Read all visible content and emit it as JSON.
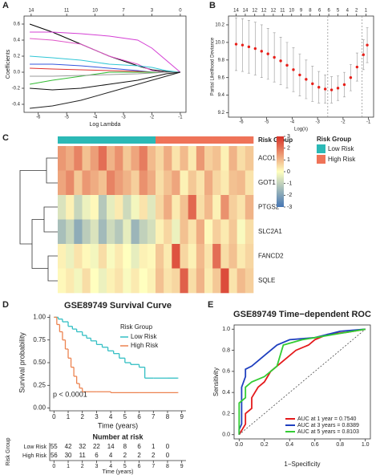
{
  "chart_data": [
    {
      "type": "lasso",
      "panel": "A",
      "xlabel": "Log Lambda",
      "ylabel": "Coefficients",
      "xlim": [
        -6.5,
        -0.8
      ],
      "xticks": [
        -6,
        -5,
        -4,
        -3,
        -2,
        -1
      ],
      "x2ticks": [
        {
          "value": -6.25,
          "label": "14"
        },
        {
          "value": -5,
          "label": "11"
        },
        {
          "value": -4,
          "label": "10"
        },
        {
          "value": -3,
          "label": "7"
        },
        {
          "value": -2,
          "label": "3"
        },
        {
          "value": -1,
          "label": "0"
        }
      ],
      "ylim": [
        -0.5,
        0.7
      ],
      "yticks": [
        -0.4,
        -0.2,
        {
          "value": 0,
          "label": "0.0"
        },
        0.2,
        0.4,
        0.6
      ],
      "x": [
        -6.3,
        -5.5,
        -4.5,
        -3.5,
        -2.5,
        -2,
        -1.5,
        -1
      ],
      "series": [
        {
          "color": "#000000",
          "values": [
            0.6,
            0.5,
            0.35,
            0.2,
            0.08,
            0.03,
            0.01,
            0
          ]
        },
        {
          "color": "#d43fd4",
          "values": [
            0.5,
            0.5,
            0.48,
            0.45,
            0.4,
            0.3,
            0.15,
            0
          ]
        },
        {
          "color": "#e055c8",
          "values": [
            0.42,
            0.4,
            0.35,
            0.2,
            0.1,
            0.02,
            0,
            0
          ]
        },
        {
          "color": "#2fc6d6",
          "values": [
            0.2,
            0.18,
            0.15,
            0.1,
            0.08,
            0.06,
            0.02,
            0
          ]
        },
        {
          "color": "#3355dd",
          "values": [
            0.1,
            0.1,
            0.08,
            0.05,
            0.02,
            0,
            0,
            0
          ]
        },
        {
          "color": "#e03030",
          "values": [
            0.05,
            0.04,
            0.03,
            0.02,
            0.01,
            0,
            0,
            0
          ]
        },
        {
          "color": "#33bb33",
          "values": [
            -0.15,
            -0.1,
            -0.05,
            0,
            0,
            0,
            0,
            0
          ]
        },
        {
          "color": "#999999",
          "values": [
            -0.05,
            -0.05,
            -0.04,
            -0.03,
            -0.02,
            -0.01,
            0,
            0
          ]
        },
        {
          "color": "#111111",
          "values": [
            -0.2,
            -0.22,
            -0.2,
            -0.15,
            -0.1,
            -0.06,
            -0.02,
            0
          ]
        },
        {
          "color": "#222222",
          "values": [
            -0.45,
            -0.42,
            -0.35,
            -0.25,
            -0.15,
            -0.1,
            -0.05,
            0
          ]
        }
      ]
    },
    {
      "type": "cv",
      "panel": "B",
      "xlabel": "Log(λ)",
      "ylabel": "Partial Likelihood Deviance",
      "xlim": [
        -6.5,
        -0.8
      ],
      "xticks": [
        -6,
        -5,
        -4,
        -3,
        -2,
        -1
      ],
      "x2ticks": [
        {
          "value": -6.2,
          "label": "14"
        },
        {
          "value": -5.84,
          "label": "14"
        },
        {
          "value": -5.47,
          "label": "12"
        },
        {
          "value": -5.11,
          "label": "12"
        },
        {
          "value": -4.74,
          "label": "12"
        },
        {
          "value": -4.38,
          "label": "11"
        },
        {
          "value": -4.02,
          "label": "10"
        },
        {
          "value": -3.65,
          "label": "9"
        },
        {
          "value": -3.29,
          "label": "8"
        },
        {
          "value": -2.92,
          "label": "6"
        },
        {
          "value": -2.56,
          "label": "6"
        },
        {
          "value": -2.2,
          "label": "5"
        },
        {
          "value": -1.83,
          "label": "4"
        },
        {
          "value": -1.47,
          "label": "2"
        },
        {
          "value": -1.1,
          "label": "1"
        }
      ],
      "ylim": [
        9.15,
        10.3
      ],
      "yticks": [
        9.2,
        9.4,
        9.6,
        9.8,
        {
          "value": 10,
          "label": "10.0"
        },
        10.2
      ],
      "color": "#e8201a",
      "vlines": [
        -2.6,
        -1.25
      ],
      "x": [
        -6.2,
        -5.95,
        -5.7,
        -5.45,
        -5.2,
        -4.95,
        -4.7,
        -4.45,
        -4.2,
        -3.95,
        -3.7,
        -3.45,
        -3.2,
        -2.95,
        -2.7,
        -2.45,
        -2.2,
        -1.95,
        -1.7,
        -1.45,
        -1.2,
        -1.05
      ],
      "values": [
        9.98,
        9.97,
        9.95,
        9.93,
        9.9,
        9.87,
        9.83,
        9.79,
        9.74,
        9.69,
        9.63,
        9.58,
        9.53,
        9.49,
        9.47,
        9.46,
        9.48,
        9.52,
        9.6,
        9.72,
        9.86,
        9.97
      ],
      "errors": [
        0.3,
        0.3,
        0.3,
        0.3,
        0.3,
        0.29,
        0.28,
        0.27,
        0.26,
        0.25,
        0.24,
        0.22,
        0.2,
        0.18,
        0.16,
        0.15,
        0.14,
        0.14,
        0.15,
        0.16,
        0.17,
        0.2
      ]
    },
    {
      "type": "heatmap",
      "panel": "C",
      "annotation_label": "Risk Group",
      "legend_title": "Risk Group",
      "groups": [
        {
          "name": "Low Risk",
          "color": "#2bb9b6"
        },
        {
          "name": "High Risk",
          "color": "#ef7358"
        }
      ],
      "column_groups": [
        0,
        0,
        0,
        0,
        0,
        0,
        0,
        0,
        0,
        0,
        0,
        0,
        1,
        1,
        1,
        1,
        1,
        1,
        1,
        1,
        1,
        1,
        1,
        1
      ],
      "zlim": [
        -3,
        3
      ],
      "colors": [
        "#4575b4",
        "#ffffbf",
        "#d73027"
      ],
      "colorbar_ticks": [
        3,
        2,
        1,
        0,
        -1,
        -2,
        -3
      ],
      "rows": [
        "ACO1",
        "GOT1",
        "PTGS2",
        "SLC2A1",
        "FANCD2",
        "SQLE"
      ],
      "values": [
        [
          1.5,
          1.2,
          1.8,
          0.9,
          1.4,
          2.1,
          1.1,
          1.6,
          0.8,
          1.3,
          1.9,
          1.0,
          0.6,
          1.2,
          0.4,
          1.0,
          0.3,
          1.5,
          0.7,
          0.9,
          0.2,
          1.1,
          0.5,
          0.8
        ],
        [
          1.3,
          1.7,
          0.8,
          1.5,
          1.2,
          0.9,
          1.8,
          1.4,
          1.1,
          0.7,
          1.6,
          1.2,
          0.5,
          0.9,
          1.3,
          0.2,
          0.8,
          0.4,
          1.2,
          0.6,
          0.3,
          0.9,
          1.0,
          0.4
        ],
        [
          -0.6,
          0.2,
          -0.9,
          -0.3,
          0.1,
          -1.2,
          -0.4,
          0.3,
          -0.8,
          -0.2,
          0.4,
          -0.5,
          0.6,
          1.2,
          0.3,
          0.9,
          2.2,
          0.5,
          1.0,
          0.2,
          1.6,
          0.7,
          0.4,
          1.1
        ],
        [
          -1.4,
          -0.9,
          -1.8,
          -1.1,
          -0.6,
          -1.5,
          -0.8,
          -1.2,
          -0.4,
          -1.6,
          -1.0,
          -0.7,
          0.2,
          0.6,
          -0.3,
          0.9,
          0.4,
          1.2,
          0.1,
          0.7,
          0.3,
          0.8,
          -0.1,
          0.5
        ],
        [
          0.2,
          -0.3,
          0.4,
          0.1,
          -0.2,
          0.5,
          -0.1,
          0.3,
          0.0,
          -0.4,
          0.2,
          0.1,
          0.8,
          0.3,
          2.5,
          0.6,
          0.2,
          1.0,
          0.4,
          2.1,
          0.5,
          0.9,
          0.3,
          0.6
        ],
        [
          0.1,
          0.3,
          -0.2,
          0.5,
          0.0,
          -0.3,
          0.2,
          0.4,
          -0.1,
          0.3,
          0.0,
          0.2,
          0.9,
          0.4,
          0.6,
          2.3,
          0.5,
          1.1,
          0.3,
          0.8,
          2.6,
          0.4,
          1.0,
          0.7
        ]
      ]
    },
    {
      "type": "survival",
      "panel": "D",
      "title": "GSE89749 Survival Curve",
      "xlabel": "Time (years)",
      "ylabel": "Survival probability",
      "legend_title": "Risk Group",
      "annotation": "p < 0.0001",
      "xlim": [
        -0.3,
        9.3
      ],
      "xticks": [
        0,
        1,
        2,
        3,
        4,
        5,
        6,
        7,
        8,
        9
      ],
      "ylim": [
        -0.03,
        1.03
      ],
      "yticks": [
        {
          "value": 0,
          "label": "0.00"
        },
        {
          "value": 0.25,
          "label": "0.25"
        },
        {
          "value": 0.5,
          "label": "0.50"
        },
        {
          "value": 0.75,
          "label": "0.75"
        },
        {
          "value": 1,
          "label": "1.00"
        }
      ],
      "series": [
        {
          "name": "Low Risk",
          "color": "#33bfc4",
          "x": [
            0,
            0.3,
            0.6,
            1,
            1.3,
            1.6,
            2,
            2.3,
            2.6,
            3,
            3.4,
            3.8,
            4.2,
            4.6,
            5,
            5.4,
            6,
            6.4,
            7,
            8,
            8.7
          ],
          "values": [
            1,
            0.98,
            0.95,
            0.9,
            0.87,
            0.84,
            0.8,
            0.77,
            0.74,
            0.7,
            0.67,
            0.63,
            0.6,
            0.55,
            0.5,
            0.48,
            0.45,
            0.33,
            0.33,
            0.33,
            0.33
          ]
        },
        {
          "name": "High Risk",
          "color": "#ec8350",
          "x": [
            0,
            0.2,
            0.4,
            0.6,
            0.8,
            1,
            1.2,
            1.4,
            1.6,
            1.8,
            2,
            3,
            4,
            6,
            8.7
          ],
          "values": [
            1,
            0.92,
            0.84,
            0.75,
            0.65,
            0.55,
            0.45,
            0.35,
            0.27,
            0.22,
            0.18,
            0.18,
            0.17,
            0.17,
            0.17
          ]
        }
      ],
      "risk_table": {
        "title": "Number at risk",
        "ylabel": "Risk Group",
        "times": [
          0,
          1,
          2,
          3,
          4,
          5,
          6,
          7,
          8
        ],
        "counts": [
          [
            55,
            42,
            32,
            22,
            14,
            8,
            6,
            1,
            0
          ],
          [
            56,
            30,
            11,
            6,
            4,
            2,
            2,
            2,
            0
          ]
        ]
      }
    },
    {
      "type": "roc",
      "panel": "E",
      "title": "GSE89749 Time−dependent ROC",
      "xlabel": "1−Specificity",
      "ylabel": "Sensitivity",
      "xlim": [
        -0.04,
        1.04
      ],
      "xticks": [
        {
          "value": 0,
          "label": "0.0"
        },
        0.2,
        0.4,
        0.6,
        0.8,
        {
          "value": 1,
          "label": "1.0"
        }
      ],
      "ylim": [
        -0.04,
        1.04
      ],
      "yticks": [
        {
          "value": 0,
          "label": "0.0"
        },
        0.2,
        0.4,
        0.6,
        0.8,
        {
          "value": 1,
          "label": "1.0"
        }
      ],
      "series": [
        {
          "name": "AUC at 1 year  = 0.7540",
          "color": "#e41a1c",
          "x": [
            0,
            0.05,
            0.05,
            0.1,
            0.1,
            0.15,
            0.2,
            0.25,
            0.3,
            0.35,
            0.45,
            0.55,
            0.6,
            0.7,
            0.85,
            1
          ],
          "values": [
            0,
            0.1,
            0.2,
            0.25,
            0.35,
            0.45,
            0.5,
            0.6,
            0.65,
            0.7,
            0.8,
            0.85,
            0.9,
            0.95,
            0.97,
            1
          ]
        },
        {
          "name": "AUC at 3 years = 0.8389",
          "color": "#1f3fbf",
          "x": [
            0,
            0,
            0.02,
            0.02,
            0.05,
            0.05,
            0.1,
            0.15,
            0.2,
            0.3,
            0.4,
            0.6,
            0.8,
            1
          ],
          "values": [
            0,
            0.05,
            0.1,
            0.45,
            0.55,
            0.62,
            0.65,
            0.7,
            0.75,
            0.85,
            0.9,
            0.92,
            0.98,
            1
          ]
        },
        {
          "name": "AUC at 5 years = 0.8103",
          "color": "#33cc33",
          "x": [
            0,
            0,
            0.05,
            0.05,
            0.1,
            0.2,
            0.3,
            0.35,
            0.5,
            0.6,
            0.8,
            1
          ],
          "values": [
            0,
            0.3,
            0.35,
            0.45,
            0.5,
            0.55,
            0.65,
            0.85,
            0.9,
            0.92,
            0.96,
            1
          ]
        }
      ]
    }
  ]
}
